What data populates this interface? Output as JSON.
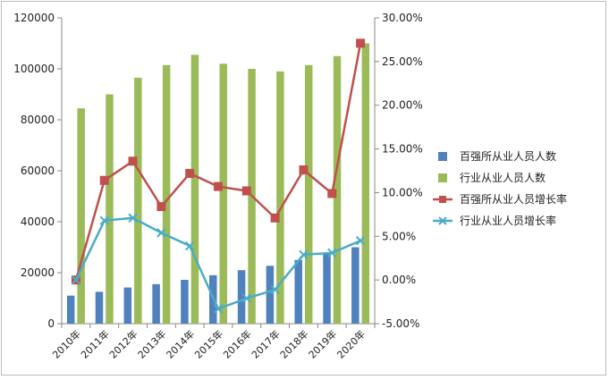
{
  "chart_data": {
    "type": "bar",
    "categories": [
      "2010年",
      "2011年",
      "2012年",
      "2013年",
      "2014年",
      "2015年",
      "2016年",
      "2017年",
      "2018年",
      "2019年",
      "2020年"
    ],
    "y_left": {
      "ylim": [
        0,
        120000
      ],
      "ticks": [
        "0",
        "20000",
        "40000",
        "60000",
        "80000",
        "100000",
        "120000"
      ]
    },
    "y_right": {
      "ylim": [
        -0.05,
        0.3
      ],
      "ticks": [
        "-5.00%",
        "0.00%",
        "5.00%",
        "10.00%",
        "15.00%",
        "20.00%",
        "25.00%",
        "30.00%"
      ]
    },
    "series": [
      {
        "name": "百强所从业人员人数",
        "type": "bar",
        "axis": "left",
        "color": "#4F81BD",
        "values": [
          11000,
          12500,
          14200,
          15500,
          17200,
          19000,
          21000,
          22700,
          25000,
          27800,
          30000
        ]
      },
      {
        "name": "行业从业人员人数",
        "type": "bar",
        "axis": "left",
        "color": "#9BBB59",
        "values": [
          84500,
          90000,
          96500,
          101500,
          105500,
          102000,
          100000,
          99000,
          101500,
          105000,
          110000
        ]
      },
      {
        "name": "百强所从业人员增长率",
        "type": "line",
        "axis": "right",
        "color": "#C0504D",
        "marker": "square",
        "values": [
          0.0,
          0.114,
          0.136,
          0.084,
          0.122,
          0.107,
          0.102,
          0.071,
          0.126,
          0.099,
          0.271
        ]
      },
      {
        "name": "行业从业人员增长率",
        "type": "line",
        "axis": "right",
        "color": "#4BACC6",
        "marker": "x",
        "values": [
          0.0,
          0.068,
          0.071,
          0.054,
          0.039,
          -0.033,
          -0.021,
          -0.011,
          0.029,
          0.031,
          0.045
        ]
      }
    ],
    "grid": false,
    "legend_position": "right"
  }
}
